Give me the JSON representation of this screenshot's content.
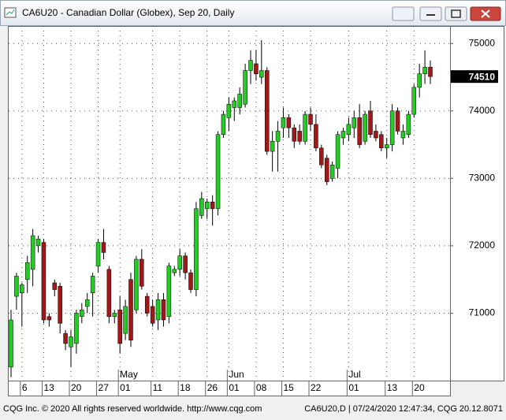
{
  "chart_data": {
    "type": "candlestick",
    "title": "CA6U20 - Canadian Dollar (Globex), Sep 20, Daily",
    "categories": [
      null,
      null,
      "6",
      null,
      null,
      null,
      "13",
      null,
      null,
      null,
      null,
      "20",
      null,
      null,
      null,
      null,
      "27",
      null,
      null,
      null,
      "01",
      null,
      null,
      null,
      null,
      null,
      "11",
      null,
      null,
      null,
      null,
      "18",
      null,
      null,
      null,
      null,
      "26",
      null,
      null,
      null,
      "01",
      null,
      null,
      null,
      null,
      "08",
      null,
      null,
      null,
      null,
      "15",
      null,
      null,
      null,
      null,
      "22",
      null,
      null,
      null,
      null,
      null,
      null,
      "01",
      null,
      null,
      null,
      null,
      null,
      null,
      "13",
      null,
      null,
      null,
      null,
      "20",
      null,
      null,
      null
    ],
    "month_labels": [
      "May",
      "Jun",
      "Jul"
    ],
    "open": [
      70200,
      71250,
      71300,
      71500,
      71650,
      72000,
      72050,
      70950,
      71450,
      71400,
      70700,
      70500,
      70550,
      70950,
      71100,
      71300,
      71700,
      72050,
      71650,
      70950,
      71050,
      70700,
      71500,
      71050,
      71800,
      71250,
      71100,
      70900,
      71200,
      70950,
      71600,
      71650,
      71850,
      71600,
      71350,
      72450,
      72550,
      72650,
      72550,
      73650,
      73900,
      74050,
      74050,
      74100,
      74600,
      74700,
      74500,
      74600,
      73400,
      73550,
      73750,
      73900,
      73750,
      73700,
      73550,
      73950,
      73800,
      73450,
      73300,
      73000,
      73150,
      73600,
      73650,
      73750,
      73900,
      73550,
      74000,
      73700,
      73650,
      73450,
      73500,
      74000,
      73600,
      73650,
      73950,
      74350,
      74550,
      74650
    ],
    "high": [
      71050,
      71600,
      71450,
      71850,
      72250,
      72150,
      72100,
      71000,
      71500,
      71450,
      70750,
      70750,
      71050,
      71150,
      71300,
      71600,
      72100,
      72250,
      71700,
      71050,
      71250,
      71200,
      71600,
      71850,
      71950,
      71300,
      71200,
      71300,
      71300,
      71750,
      71700,
      71950,
      71900,
      71650,
      72650,
      72800,
      72700,
      72750,
      73700,
      74000,
      74200,
      74200,
      74350,
      74700,
      74900,
      74900,
      75050,
      74650,
      73700,
      73850,
      74050,
      73950,
      73800,
      73800,
      74000,
      74050,
      73950,
      73500,
      73350,
      73250,
      73700,
      73750,
      73900,
      74000,
      74100,
      74000,
      74150,
      73800,
      73700,
      73600,
      74100,
      74050,
      73800,
      74000,
      74400,
      74700,
      74900,
      74750
    ],
    "low": [
      70050,
      71050,
      70800,
      71300,
      71400,
      71900,
      70850,
      70800,
      71250,
      70700,
      70450,
      70200,
      70400,
      70850,
      71000,
      70950,
      71600,
      71800,
      70850,
      70850,
      70400,
      70600,
      70500,
      71000,
      71350,
      70950,
      70800,
      70750,
      70800,
      70850,
      71550,
      71550,
      71500,
      71300,
      71250,
      72400,
      72400,
      72300,
      72450,
      73600,
      73700,
      73850,
      73950,
      74050,
      74400,
      74450,
      74400,
      73350,
      73100,
      73100,
      73600,
      73600,
      73450,
      73500,
      73500,
      73700,
      73400,
      73150,
      72900,
      72950,
      73000,
      73500,
      73550,
      73600,
      73450,
      73500,
      73600,
      73550,
      73400,
      73300,
      73400,
      73650,
      73500,
      73600,
      73900,
      74200,
      74400,
      74400
    ],
    "close": [
      70900,
      71550,
      71420,
      71750,
      72150,
      72100,
      70900,
      70900,
      71350,
      70850,
      70550,
      70650,
      71000,
      71050,
      71200,
      71550,
      72050,
      71900,
      70950,
      71000,
      70550,
      71100,
      70600,
      71800,
      71400,
      71000,
      70850,
      71200,
      70900,
      71700,
      71650,
      71850,
      71600,
      71350,
      72550,
      72700,
      72650,
      72550,
      73650,
      73950,
      74100,
      74150,
      74250,
      74600,
      74750,
      74550,
      74600,
      73400,
      73550,
      73700,
      73900,
      73750,
      73550,
      73550,
      73950,
      73800,
      73450,
      73200,
      72950,
      73200,
      73650,
      73700,
      73800,
      73900,
      73500,
      73950,
      73650,
      73600,
      73450,
      73500,
      74000,
      73700,
      73700,
      73950,
      74350,
      74550,
      74650,
      74510
    ],
    "up_color": "#22cc22",
    "down_color": "#a01818",
    "ylim": [
      70000,
      75260
    ],
    "yticks": [
      71000,
      72000,
      73000,
      74000,
      75000
    ],
    "last_price": 74510,
    "grid": true
  },
  "footer": {
    "left": "CQG Inc. © 2020 All rights reserved worldwide. http://www.cqg.com",
    "right": "CA6U20,D | 07/24/2020 12:47:34, CQG 20.12.8071"
  }
}
